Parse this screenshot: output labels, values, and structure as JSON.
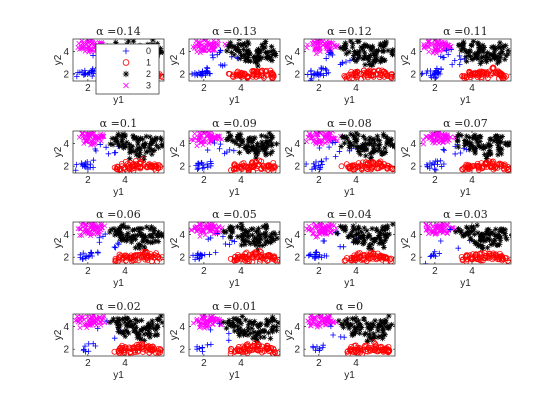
{
  "figure": {
    "xlabel": "y1",
    "ylabel": "y2",
    "xticks": [
      "2",
      "4"
    ],
    "yticks": [
      "2",
      "4"
    ],
    "xlim": [
      1.2,
      6.1
    ],
    "ylim": [
      1.4,
      5.1
    ]
  },
  "legend": {
    "placement": "inside first subplot, right",
    "entries": [
      {
        "label": "0",
        "marker": "plus",
        "color": "#0000ff"
      },
      {
        "label": "1",
        "marker": "circle",
        "color": "#ff0000"
      },
      {
        "label": "2",
        "marker": "asterisk",
        "color": "#000000"
      },
      {
        "label": "3",
        "marker": "cross",
        "color": "#ff00ff"
      }
    ]
  },
  "chart_data": {
    "type": "scatter",
    "grid": false,
    "layout_grid": "4 rows × 4 columns (15 panels)",
    "title_prefix": "α =",
    "panels": [
      {
        "alpha": "0.14"
      },
      {
        "alpha": "0.13"
      },
      {
        "alpha": "0.12"
      },
      {
        "alpha": "0.11"
      },
      {
        "alpha": "0.1"
      },
      {
        "alpha": "0.09"
      },
      {
        "alpha": "0.08"
      },
      {
        "alpha": "0.07"
      },
      {
        "alpha": "0.06"
      },
      {
        "alpha": "0.05"
      },
      {
        "alpha": "0.04"
      },
      {
        "alpha": "0.03"
      },
      {
        "alpha": "0.02"
      },
      {
        "alpha": "0.01"
      },
      {
        "alpha": "0"
      }
    ],
    "series": [
      {
        "name": "0",
        "marker": "plus",
        "color": "#0000ff",
        "x": [
          1.6,
          1.7,
          1.8,
          1.9,
          2.0,
          2.1,
          2.2,
          2.3,
          2.5,
          2.8,
          3.2,
          3.6
        ],
        "y": [
          2.0,
          2.1,
          1.9,
          2.2,
          2.0,
          2.3,
          2.1,
          2.4,
          3.5,
          4.0,
          3.0,
          3.4
        ]
      },
      {
        "name": "1",
        "marker": "circle",
        "color": "#ff0000",
        "x": [
          3.6,
          3.8,
          4.0,
          4.2,
          4.4,
          4.6,
          4.8,
          5.0,
          5.2,
          5.4,
          5.6,
          5.8
        ],
        "y": [
          1.8,
          2.0,
          1.9,
          2.1,
          1.8,
          2.2,
          2.0,
          2.3,
          1.9,
          2.1,
          2.0,
          1.8
        ]
      },
      {
        "name": "2",
        "marker": "asterisk",
        "color": "#000000",
        "x": [
          3.4,
          3.7,
          4.0,
          4.3,
          4.6,
          4.9,
          5.2,
          5.5,
          5.8,
          4.2,
          4.8,
          5.4
        ],
        "y": [
          4.4,
          4.0,
          4.6,
          3.8,
          4.3,
          3.6,
          4.1,
          4.5,
          3.9,
          3.4,
          3.0,
          3.3
        ]
      },
      {
        "name": "3",
        "marker": "cross",
        "color": "#ff00ff",
        "x": [
          1.6,
          1.8,
          2.0,
          2.2,
          2.4,
          2.6,
          2.8,
          1.9,
          2.3,
          2.5
        ],
        "y": [
          4.5,
          4.8,
          4.3,
          4.9,
          4.4,
          4.7,
          4.5,
          4.1,
          4.6,
          4.2
        ]
      }
    ]
  }
}
